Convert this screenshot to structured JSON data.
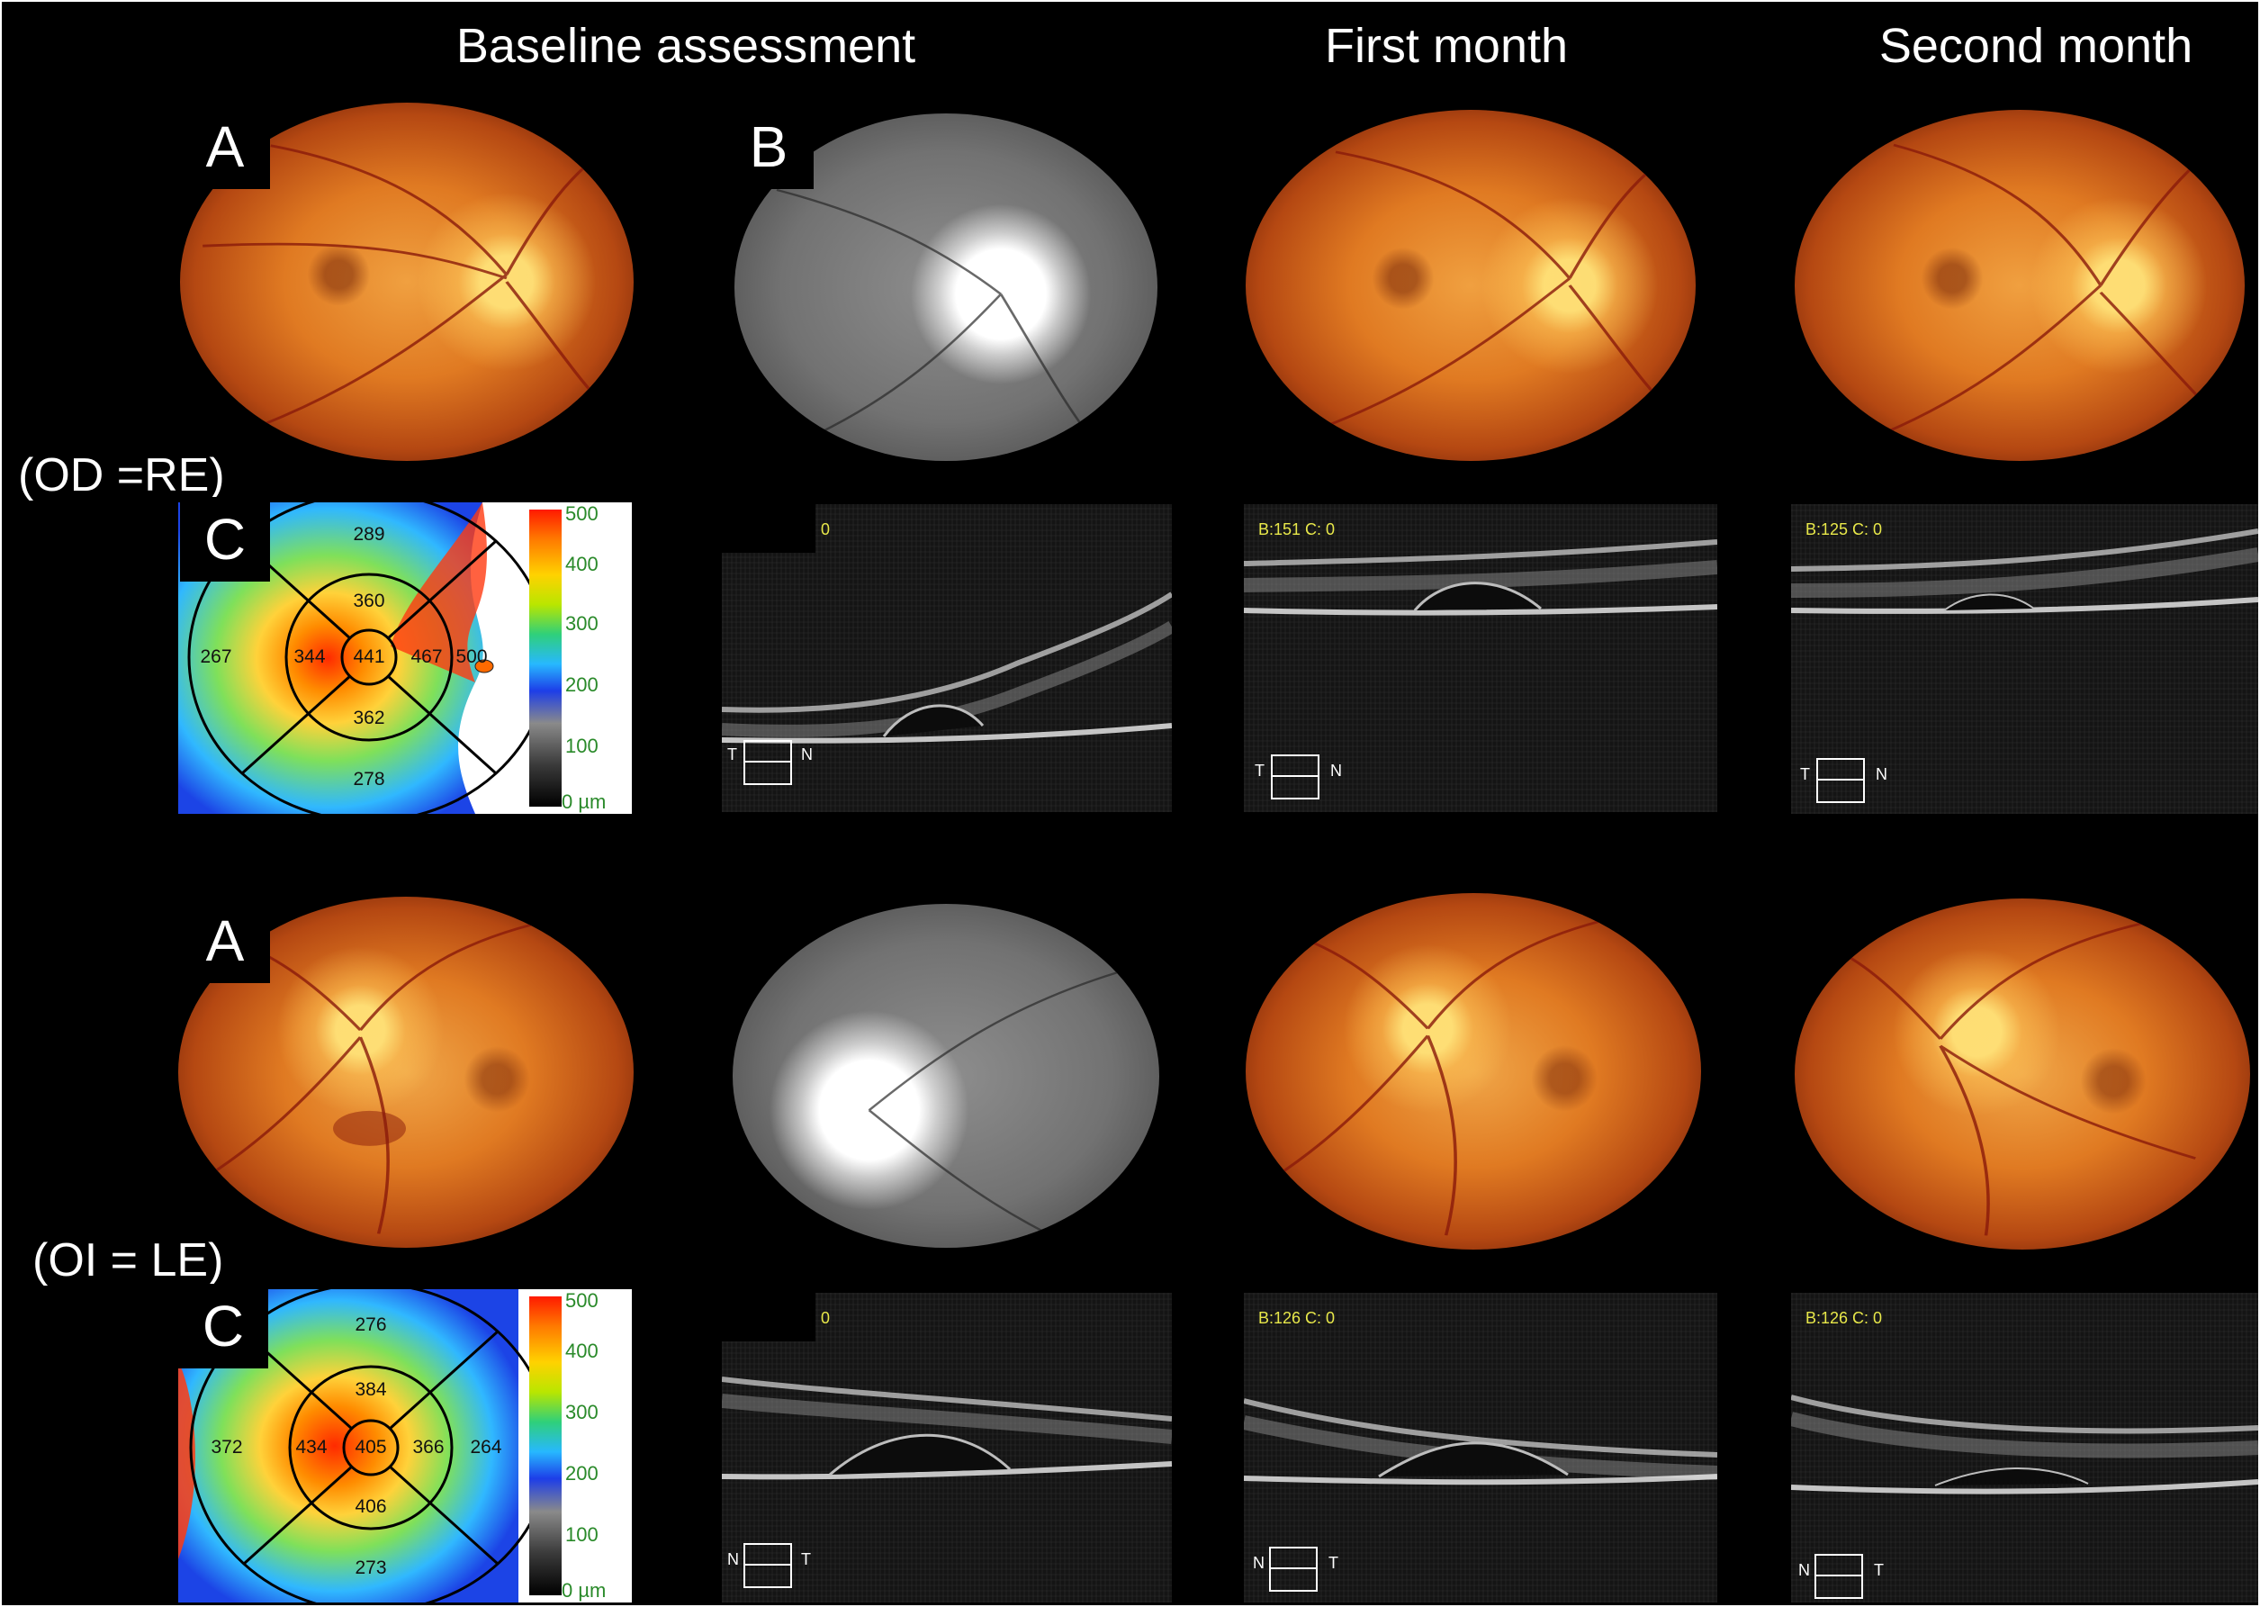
{
  "headers": {
    "baseline": "Baseline assessment",
    "first": "First month",
    "second": "Second month"
  },
  "eye_labels": {
    "right": "(OD =RE)",
    "left": "(OI = LE)"
  },
  "panel_letters": {
    "right_a": "A",
    "right_b": "B",
    "right_c": "C",
    "left_a": "A",
    "left_c": "C"
  },
  "right_map": {
    "sectors": {
      "superior_outer": "289",
      "superior_inner": "360",
      "temporal_outer": "267",
      "temporal_inner": "344",
      "center": "441",
      "nasal_inner": "467",
      "nasal_outer": "500",
      "inferior_inner": "362",
      "inferior_outer": "278"
    },
    "scale": [
      "500",
      "400",
      "300",
      "200",
      "100",
      "0 µm"
    ]
  },
  "left_map": {
    "sectors": {
      "superior_outer": "276",
      "superior_inner": "384",
      "temporal_outer": "372",
      "temporal_inner": "434",
      "center": "405",
      "nasal_inner": "366",
      "nasal_outer": "264",
      "inferior_inner": "406",
      "inferior_outer": "273"
    },
    "scale": [
      "500",
      "400",
      "300",
      "200",
      "100",
      "0 µm"
    ]
  },
  "oct_scans": {
    "right_baseline": {
      "label": "0",
      "left": "T",
      "right": "N"
    },
    "right_first": {
      "label": "B:151 C: 0",
      "left": "T",
      "right": "N"
    },
    "right_second": {
      "label": "B:125 C: 0",
      "left": "T",
      "right": "N"
    },
    "left_baseline": {
      "label": "0",
      "left": "N",
      "right": "T"
    },
    "left_first": {
      "label": "B:126 C: 0",
      "left": "N",
      "right": "T"
    },
    "left_second": {
      "label": "B:126 C: 0",
      "left": "N",
      "right": "T"
    }
  }
}
